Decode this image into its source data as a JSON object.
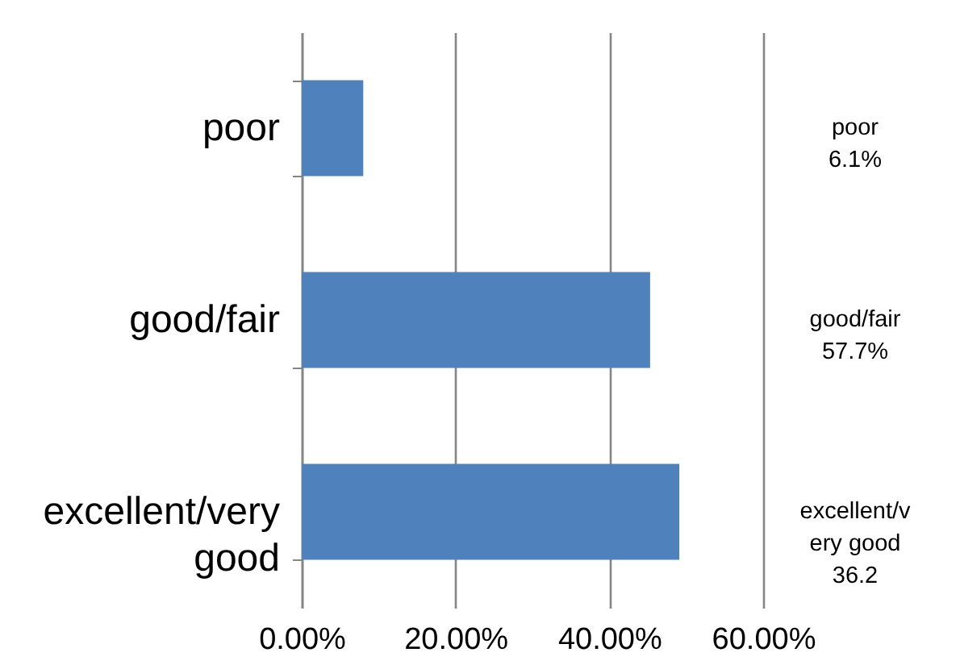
{
  "chart_data": {
    "type": "bar",
    "orientation": "horizontal",
    "categories": [
      "poor",
      "good/fair",
      "excellent/very good"
    ],
    "values": [
      8.0,
      45.3,
      49.1
    ],
    "color": "#4f81bd",
    "xlim": [
      0,
      60
    ],
    "xticks": [
      {
        "value": 0,
        "label": "0.00%"
      },
      {
        "value": 20,
        "label": "20.00%"
      },
      {
        "value": 40,
        "label": "40.00%"
      },
      {
        "value": 60,
        "label": "60.00%"
      }
    ],
    "grid": "x",
    "annotations": [
      "poor\n6.1%",
      "good/fair\n57.7%",
      "excellent/v\nery good\n36.2"
    ]
  }
}
